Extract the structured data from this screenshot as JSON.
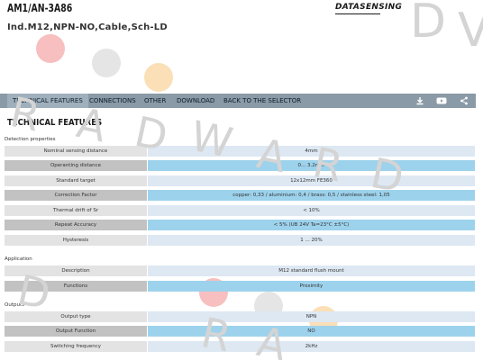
{
  "header": {
    "model": "AM1/AN-3A86",
    "subtitle": "Ind.M12,NPN-NO,Cable,Sch-LD",
    "logo": "DATASENSING"
  },
  "nav": {
    "items": [
      {
        "label": "TECHNICAL FEATURES"
      },
      {
        "label": "CONNECTIONS"
      },
      {
        "label": "OTHER"
      },
      {
        "label": "DOWNLOAD"
      },
      {
        "label": "BACK TO THE SELECTOR"
      }
    ],
    "icons": [
      "download-icon",
      "youtube-icon",
      "share-icon"
    ]
  },
  "section_title": "TECHNICAL FEATURES",
  "groups": {
    "detection": {
      "label": "Detection properties",
      "rows": [
        {
          "label": "Nominal sensing distance",
          "value": "4mm"
        },
        {
          "label": "Operanting distance",
          "value": "0... 3.2mm"
        },
        {
          "label": "Standard target",
          "value": "12x12mm FE360"
        },
        {
          "label": "Correction Factor",
          "value": "copper: 0,33 / aluminium: 0,4 / brass: 0,5 / stainless steel: 1,05"
        },
        {
          "label": "Thermal drift of Sr",
          "value": "< 10%"
        },
        {
          "label": "Repeat Accuracy",
          "value": "< 5% (UB 24V Ta=23°C ±5°C)"
        },
        {
          "label": "Hysteresis",
          "value": "1 ... 20%"
        }
      ]
    },
    "application": {
      "label": "Application",
      "rows": [
        {
          "label": "Description",
          "value": "M12 standard flush mount"
        },
        {
          "label": "Functions",
          "value": "Proximity"
        }
      ]
    },
    "outputs": {
      "label": "Outputs",
      "rows": [
        {
          "label": "Output type",
          "value": "NPN"
        },
        {
          "label": "Output Function",
          "value": "NO"
        },
        {
          "label": "Switching frequency",
          "value": "2kHz"
        }
      ]
    }
  },
  "watermark": {
    "letters_1": [
      "R",
      "A",
      "D",
      "W",
      "A",
      "R",
      "D"
    ],
    "letters_2": [
      "D",
      "R",
      "A"
    ],
    "top": [
      "D",
      "V"
    ]
  },
  "colors": {
    "nav_bg": "#8a9aa6",
    "row_light_value": "#dde8f3",
    "row_dark_value": "#9dd2ec",
    "watermark_red": "#f2a0a0",
    "watermark_grey": "#d9d9d9",
    "watermark_orange": "#f7cf96"
  }
}
